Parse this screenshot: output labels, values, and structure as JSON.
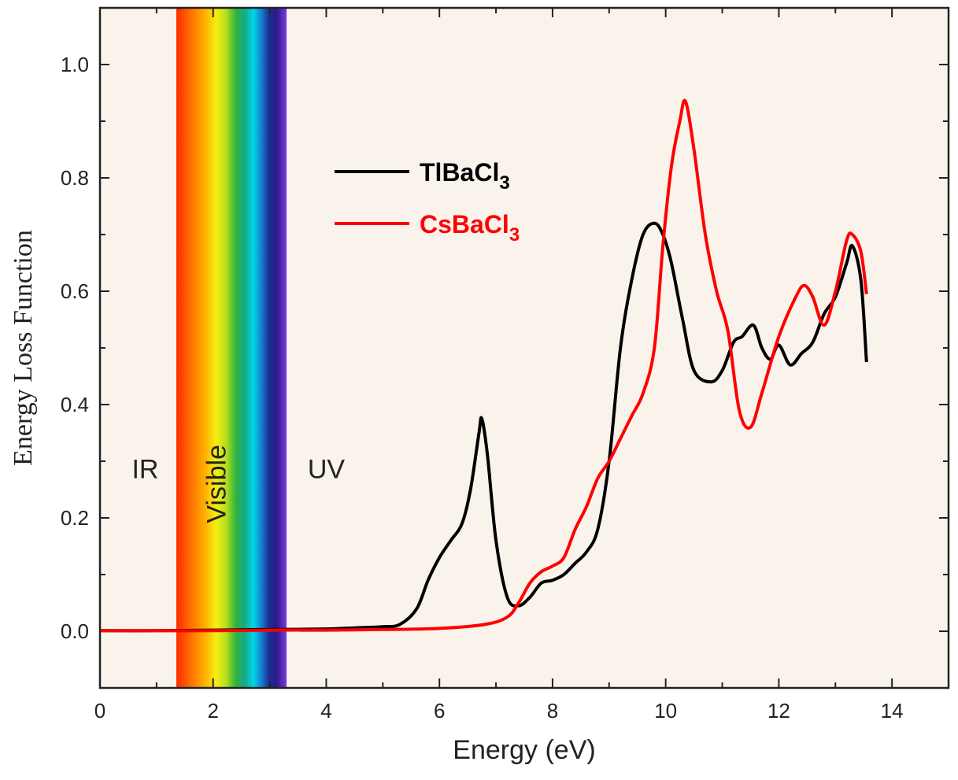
{
  "chart_data": {
    "type": "line",
    "title": "",
    "xlabel": "Energy (eV)",
    "ylabel": "Energy Loss Function",
    "xlim": [
      0,
      15
    ],
    "ylim": [
      -0.1,
      1.1
    ],
    "xticks": [
      "0",
      "2",
      "4",
      "6",
      "8",
      "10",
      "12",
      "14"
    ],
    "yticks": [
      "0.0",
      "0.2",
      "0.4",
      "0.6",
      "0.8",
      "1.0"
    ],
    "regions": [
      {
        "label": "IR",
        "from": 0,
        "to": 1.35
      },
      {
        "label": "Visible",
        "from": 1.35,
        "to": 3.3
      },
      {
        "label": "UV",
        "from": 3.3,
        "to": 15
      }
    ],
    "legend": {
      "position": "upper-middle",
      "entries": [
        {
          "base": "TlBaCl",
          "sub": "3",
          "color": "#000000"
        },
        {
          "base": "CsBaCl",
          "sub": "3",
          "color": "#ff0000"
        }
      ]
    },
    "series": [
      {
        "name": "TlBaCl3",
        "color": "#000000",
        "x": [
          0,
          1,
          2,
          3,
          4,
          4.5,
          5,
          5.3,
          5.6,
          5.8,
          6.0,
          6.2,
          6.4,
          6.55,
          6.7,
          6.75,
          6.85,
          7.0,
          7.2,
          7.4,
          7.6,
          7.8,
          8.0,
          8.2,
          8.4,
          8.6,
          8.8,
          9.0,
          9.2,
          9.4,
          9.6,
          9.8,
          9.95,
          10.1,
          10.3,
          10.5,
          10.8,
          11.0,
          11.2,
          11.35,
          11.55,
          11.7,
          11.85,
          12.0,
          12.2,
          12.4,
          12.6,
          12.8,
          13.0,
          13.2,
          13.3,
          13.45,
          13.55
        ],
        "y": [
          0.001,
          0.001,
          0.002,
          0.003,
          0.004,
          0.006,
          0.008,
          0.012,
          0.04,
          0.09,
          0.13,
          0.16,
          0.19,
          0.25,
          0.35,
          0.375,
          0.31,
          0.16,
          0.06,
          0.045,
          0.06,
          0.085,
          0.09,
          0.1,
          0.12,
          0.14,
          0.18,
          0.3,
          0.5,
          0.62,
          0.7,
          0.72,
          0.7,
          0.65,
          0.55,
          0.46,
          0.44,
          0.46,
          0.51,
          0.52,
          0.54,
          0.5,
          0.48,
          0.505,
          0.47,
          0.49,
          0.51,
          0.56,
          0.59,
          0.65,
          0.68,
          0.62,
          0.475
        ]
      },
      {
        "name": "CsBaCl3",
        "color": "#ff0000",
        "x": [
          0,
          1,
          2,
          3,
          4,
          5,
          6,
          6.8,
          7.2,
          7.4,
          7.6,
          7.8,
          8.0,
          8.2,
          8.4,
          8.6,
          8.8,
          9.0,
          9.2,
          9.4,
          9.6,
          9.8,
          9.95,
          10.1,
          10.25,
          10.35,
          10.5,
          10.7,
          10.9,
          11.1,
          11.3,
          11.5,
          11.7,
          12.0,
          12.3,
          12.45,
          12.6,
          12.8,
          13.0,
          13.2,
          13.3,
          13.45,
          13.55
        ],
        "y": [
          0.001,
          0.001,
          0.001,
          0.002,
          0.002,
          0.003,
          0.005,
          0.012,
          0.025,
          0.05,
          0.085,
          0.105,
          0.115,
          0.13,
          0.18,
          0.22,
          0.27,
          0.3,
          0.34,
          0.38,
          0.42,
          0.5,
          0.68,
          0.82,
          0.9,
          0.935,
          0.85,
          0.7,
          0.6,
          0.53,
          0.39,
          0.36,
          0.42,
          0.52,
          0.59,
          0.61,
          0.59,
          0.54,
          0.6,
          0.69,
          0.7,
          0.67,
          0.595
        ]
      }
    ]
  }
}
